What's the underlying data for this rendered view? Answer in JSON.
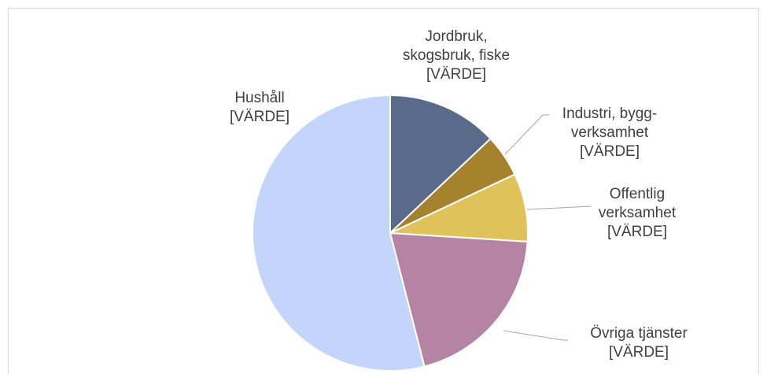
{
  "chart_data": {
    "type": "pie",
    "categories": [
      "Jordbruk, skogsbruk, fiske [VÄRDE]",
      "Industri, bygg-verksamhet [VÄRDE]",
      "Offentlig verksamhet [VÄRDE]",
      "Övriga tjänster [VÄRDE]",
      "Hushåll [VÄRDE]"
    ],
    "values": [
      13,
      5,
      8,
      20,
      54
    ],
    "colors": [
      "#596a8a",
      "#a6812e",
      "#dfc35a",
      "#b584a4",
      "#c4d5fb"
    ]
  }
}
